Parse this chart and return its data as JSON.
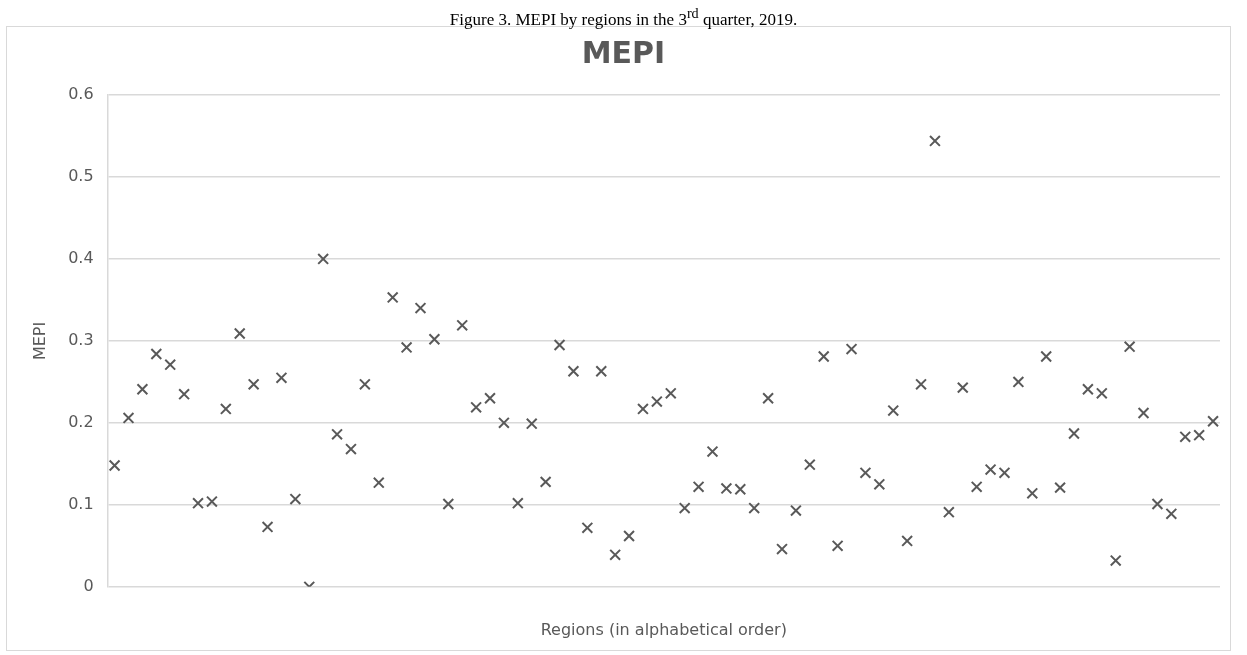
{
  "chart_data": {
    "type": "scatter",
    "title": "MEPI",
    "xlabel": "Regions (in alphabetical order)",
    "ylabel": "MEPI",
    "annotations": [
      "Figure 3. MEPI by regions in the 3$^{rd}$ quarter, 2019."
    ],
    "categories": [
      null,
      null,
      null,
      null,
      null,
      null,
      null,
      null,
      null,
      null,
      null,
      null,
      null,
      null,
      null,
      null,
      null,
      null,
      null,
      null,
      null,
      null,
      null,
      null,
      null,
      null,
      null,
      null,
      null,
      null,
      null,
      null,
      null,
      null,
      null,
      null,
      null,
      null,
      null,
      null,
      null,
      null,
      null,
      null,
      null,
      null,
      null,
      null,
      null,
      null,
      null,
      null,
      null,
      null,
      null,
      null,
      null,
      null,
      null,
      null,
      null,
      null,
      null,
      null,
      null,
      null,
      null,
      null,
      null,
      null,
      null,
      null,
      null,
      null,
      null,
      null,
      null,
      null,
      null,
      null
    ],
    "series": [
      {
        "color": "#595959",
        "values": [
          0.148,
          0.206,
          0.241,
          0.284,
          0.271,
          0.235,
          0.102,
          0.104,
          0.217,
          0.309,
          0.247,
          0.073,
          0.255,
          0.107,
          0.0,
          0.4,
          0.186,
          0.168,
          0.247,
          0.127,
          0.353,
          0.292,
          0.34,
          0.302,
          0.101,
          0.319,
          0.219,
          0.23,
          0.2,
          0.102,
          0.199,
          0.128,
          0.295,
          0.263,
          0.072,
          0.263,
          0.039,
          0.062,
          0.217,
          0.226,
          0.236,
          0.096,
          0.122,
          0.165,
          0.12,
          0.119,
          0.096,
          0.23,
          0.046,
          0.093,
          0.149,
          0.281,
          0.05,
          0.29,
          0.139,
          0.125,
          0.215,
          0.056,
          0.247,
          0.544,
          0.091,
          0.243,
          0.122,
          0.143,
          0.139,
          0.25,
          0.114,
          0.281,
          0.121,
          0.187,
          0.241,
          0.236,
          0.032,
          0.293,
          0.212,
          0.101,
          0.089,
          0.183,
          0.185,
          0.202
        ]
      }
    ],
    "ylim": [
      0,
      0.6
    ],
    "yticks": [
      0,
      0.1,
      0.2,
      0.3,
      0.4,
      0.5,
      0.6
    ],
    "grid": "y",
    "legend": false,
    "tick_labels": "y",
    "marker": "cross"
  }
}
